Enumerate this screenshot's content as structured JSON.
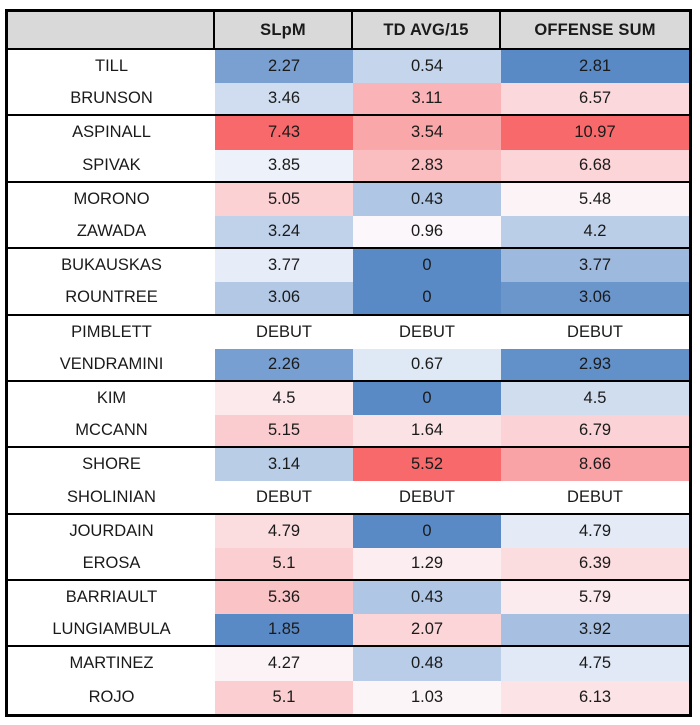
{
  "table": {
    "corner_label": ""
  },
  "style": {
    "header_bg": "#D9D9D9",
    "border_color": "#000000",
    "text_color": "#1A1A1A"
  },
  "chart_data": {
    "type": "heatmap",
    "title": "",
    "columns": [
      "SLpM",
      "TD AVG/15",
      "OFFENSE SUM"
    ],
    "rows": [
      {
        "name": "TILL",
        "values": [
          "2.27",
          "0.54",
          "2.81"
        ]
      },
      {
        "name": "BRUNSON",
        "values": [
          "3.46",
          "3.11",
          "6.57"
        ]
      },
      {
        "name": "ASPINALL",
        "values": [
          "7.43",
          "3.54",
          "10.97"
        ]
      },
      {
        "name": "SPIVAK",
        "values": [
          "3.85",
          "2.83",
          "6.68"
        ]
      },
      {
        "name": "MORONO",
        "values": [
          "5.05",
          "0.43",
          "5.48"
        ]
      },
      {
        "name": "ZAWADA",
        "values": [
          "3.24",
          "0.96",
          "4.2"
        ]
      },
      {
        "name": "BUKAUSKAS",
        "values": [
          "3.77",
          "0",
          "3.77"
        ]
      },
      {
        "name": "ROUNTREE",
        "values": [
          "3.06",
          "0",
          "3.06"
        ]
      },
      {
        "name": "PIMBLETT",
        "values": [
          "DEBUT",
          "DEBUT",
          "DEBUT"
        ]
      },
      {
        "name": "VENDRAMINI",
        "values": [
          "2.26",
          "0.67",
          "2.93"
        ]
      },
      {
        "name": "KIM",
        "values": [
          "4.5",
          "0",
          "4.5"
        ]
      },
      {
        "name": "MCCANN",
        "values": [
          "5.15",
          "1.64",
          "6.79"
        ]
      },
      {
        "name": "SHORE",
        "values": [
          "3.14",
          "5.52",
          "8.66"
        ]
      },
      {
        "name": "SHOLINIAN",
        "values": [
          "DEBUT",
          "DEBUT",
          "DEBUT"
        ]
      },
      {
        "name": "JOURDAIN",
        "values": [
          "4.79",
          "0",
          "4.79"
        ]
      },
      {
        "name": "EROSA",
        "values": [
          "5.1",
          "1.29",
          "6.39"
        ]
      },
      {
        "name": "BARRIAULT",
        "values": [
          "5.36",
          "0.43",
          "5.79"
        ]
      },
      {
        "name": "LUNGIAMBULA",
        "values": [
          "1.85",
          "2.07",
          "3.92"
        ]
      },
      {
        "name": "MARTINEZ",
        "values": [
          "4.27",
          "0.48",
          "4.75"
        ]
      },
      {
        "name": "ROJO",
        "values": [
          "5.1",
          "1.03",
          "6.13"
        ]
      }
    ],
    "row_groups_of": 2,
    "colorscale": {
      "mode": "3-color-scale-per-column",
      "low": "#5A8AC6",
      "mid": "#FCFCFF",
      "high": "#F8696B",
      "midpoint": "50th-percentile",
      "non_numeric_fill": "#FFFFFF"
    }
  }
}
